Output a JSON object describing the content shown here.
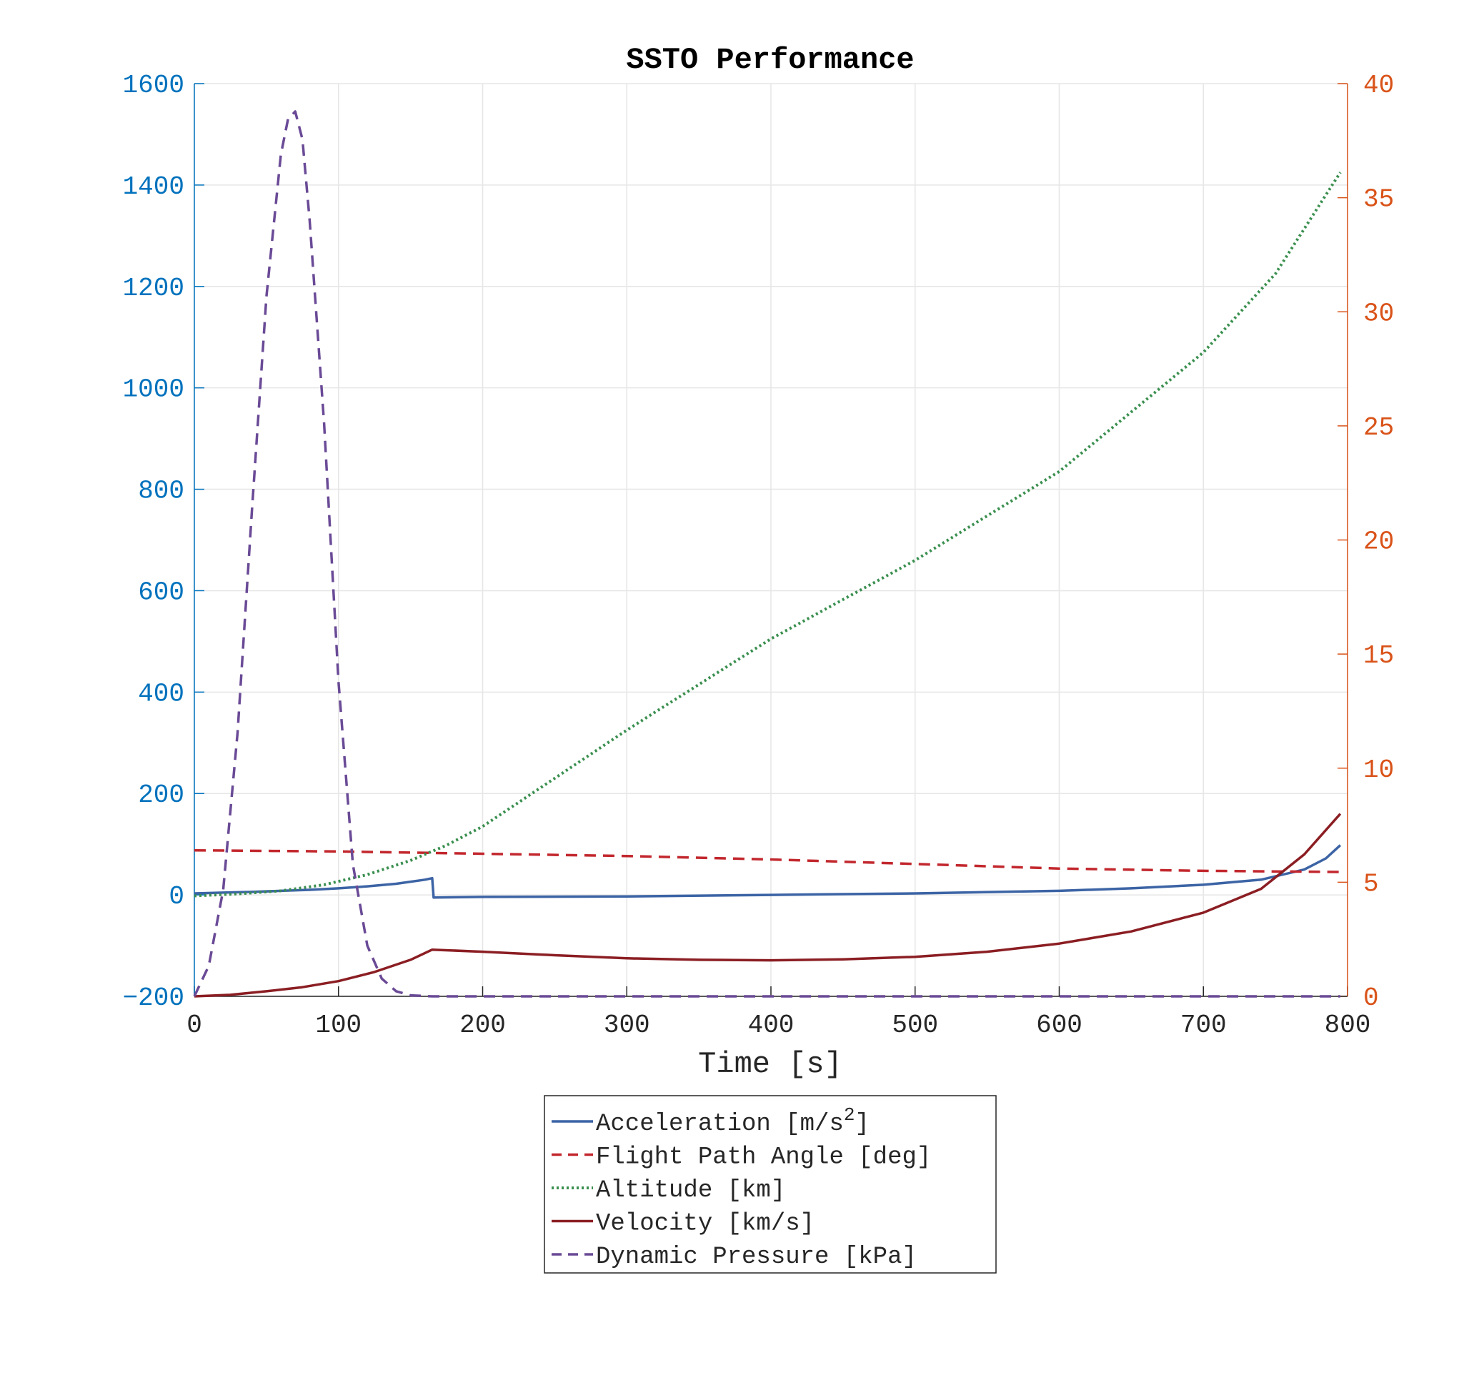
{
  "chart_data": {
    "type": "line",
    "title": "SSTO Performance",
    "xlabel": "Time [s]",
    "xlim": [
      0,
      800
    ],
    "x_ticks": [
      "0",
      "100",
      "200",
      "300",
      "400",
      "500",
      "600",
      "700",
      "800"
    ],
    "ylim_left": [
      -200,
      1600
    ],
    "y_left_ticks": [
      "-200",
      "0",
      "200",
      "400",
      "600",
      "800",
      "1000",
      "1200",
      "1400",
      "1600"
    ],
    "ylim_right": [
      0,
      40
    ],
    "y_right_ticks": [
      "0",
      "5",
      "10",
      "15",
      "20",
      "25",
      "30",
      "35",
      "40"
    ],
    "grid": true,
    "legend_location": "bottom-outside",
    "colors": {
      "left_axis": "#0072BD",
      "right_axis": "#D95319",
      "grid": "#e6e6e6",
      "axis_line": "#262626"
    },
    "series": [
      {
        "name": "Acceleration [m/s²]",
        "legend_main": "Acceleration [m/s",
        "legend_sup": "2",
        "legend_tail": "]",
        "axis": "left",
        "style": "solid",
        "color": "#3C64A5",
        "x": [
          0,
          20,
          40,
          60,
          80,
          100,
          120,
          140,
          160,
          165,
          166,
          200,
          300,
          400,
          500,
          600,
          650,
          700,
          740,
          770,
          785,
          795
        ],
        "y": [
          3,
          4.5,
          6,
          8,
          10,
          13,
          17,
          22,
          30,
          33,
          -5,
          -4,
          -3,
          0,
          3,
          8,
          13,
          20,
          30,
          50,
          72,
          98
        ]
      },
      {
        "name": "Flight Path Angle [deg]",
        "axis": "right",
        "style": "dashed",
        "color": "#C2272D",
        "x": [
          0,
          100,
          200,
          300,
          400,
          500,
          600,
          700,
          795
        ],
        "y": [
          6.4,
          6.35,
          6.25,
          6.15,
          6.0,
          5.8,
          5.6,
          5.5,
          5.45
        ]
      },
      {
        "name": "Altitude [km]",
        "axis": "left",
        "style": "dotted",
        "color": "#3A8F4F",
        "x": [
          0,
          30,
          60,
          90,
          120,
          150,
          175,
          200,
          300,
          400,
          500,
          600,
          700,
          750,
          795
        ],
        "y": [
          -2,
          2,
          8,
          20,
          40,
          68,
          98,
          135,
          325,
          505,
          660,
          835,
          1070,
          1225,
          1425
        ]
      },
      {
        "name": "Velocity [km/s]",
        "axis": "left",
        "style": "solid",
        "color": "#8B1E23",
        "x": [
          0,
          25,
          50,
          75,
          100,
          125,
          150,
          165,
          200,
          250,
          300,
          350,
          400,
          450,
          500,
          550,
          600,
          650,
          700,
          740,
          770,
          795
        ],
        "y": [
          -200,
          -197,
          -190,
          -182,
          -170,
          -152,
          -128,
          -108,
          -112,
          -119,
          -125,
          -128,
          -129,
          -127,
          -122,
          -112,
          -96,
          -72,
          -35,
          12,
          80,
          160
        ]
      },
      {
        "name": "Dynamic Pressure [kPa]",
        "axis": "left",
        "style": "dashed",
        "color": "#6A4A96",
        "x": [
          0,
          10,
          20,
          30,
          40,
          50,
          60,
          65,
          70,
          75,
          80,
          90,
          100,
          110,
          120,
          130,
          140,
          150,
          165,
          200,
          400,
          600,
          795
        ],
        "y": [
          -200,
          -140,
          10,
          320,
          760,
          1180,
          1460,
          1530,
          1545,
          1490,
          1330,
          930,
          420,
          60,
          -100,
          -165,
          -190,
          -198,
          -200,
          -200,
          -200,
          -200,
          -200
        ]
      }
    ]
  }
}
